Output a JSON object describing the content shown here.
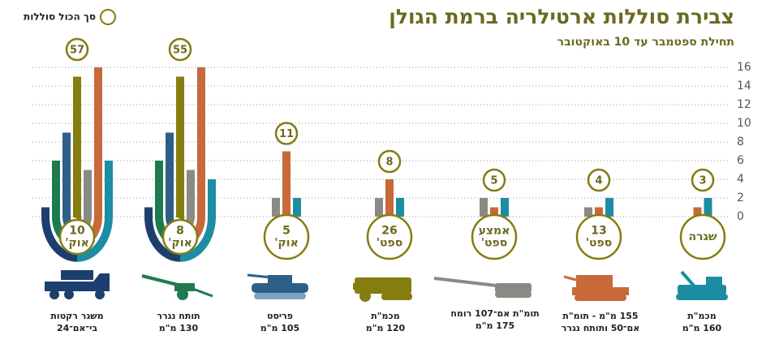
{
  "chart_data": {
    "type": "bar",
    "title": "צבירת סוללות ארטילריה ברמת הגולן",
    "subtitle": "תחילת ספטמבר עד 10 באוקטובר",
    "legend_label": "סך הכול סוללות",
    "categories": [
      [
        "10",
        "אוק'"
      ],
      [
        "8",
        "אוק'"
      ],
      [
        "5",
        "אוק'"
      ],
      [
        "26",
        "ספט'"
      ],
      [
        "אמצע",
        "ספט'"
      ],
      [
        "13",
        "ספט'"
      ],
      [
        "שגרה"
      ]
    ],
    "totals": [
      57,
      55,
      11,
      8,
      5,
      4,
      3
    ],
    "series": [
      {
        "name": [
          "משגר רקטות",
          "בי־אם־24"
        ],
        "color": "#1d3f6e",
        "values": [
          1,
          1,
          null,
          null,
          null,
          null,
          null
        ]
      },
      {
        "name": [
          "תותח נגרר",
          "130 מ\"מ"
        ],
        "color": "#1e7a4f",
        "values": [
          6,
          6,
          null,
          null,
          null,
          null,
          null
        ]
      },
      {
        "name": [
          "פריסט",
          "105 מ\"מ"
        ],
        "color": "#2d5f87",
        "values": [
          9,
          9,
          null,
          null,
          null,
          null,
          null
        ]
      },
      {
        "name": [
          "מכמ\"ת",
          "120 מ\"מ"
        ],
        "color": "#857d0f",
        "values": [
          15,
          15,
          null,
          null,
          null,
          null,
          null
        ]
      },
      {
        "name": [
          "תומ\"ת אם־107 רומח",
          "175 מ\"מ"
        ],
        "color": "#8a8a85",
        "values": [
          5,
          5,
          2,
          2,
          2,
          1,
          null
        ]
      },
      {
        "name": [
          "155 מ\"מ - תומ\"ת",
          "אם־50 ותותח נגרר"
        ],
        "color": "#c8693a",
        "values": [
          16,
          16,
          7,
          4,
          1,
          1,
          1
        ]
      },
      {
        "name": [
          "מכמ\"ת",
          "160 מ\"מ"
        ],
        "color": "#1c8da3",
        "values": [
          6,
          4,
          2,
          2,
          2,
          2,
          2
        ]
      }
    ],
    "ylim": [
      0,
      16
    ],
    "yticks": [
      0,
      2,
      4,
      6,
      8,
      10,
      12,
      14,
      16
    ],
    "grid": true
  }
}
